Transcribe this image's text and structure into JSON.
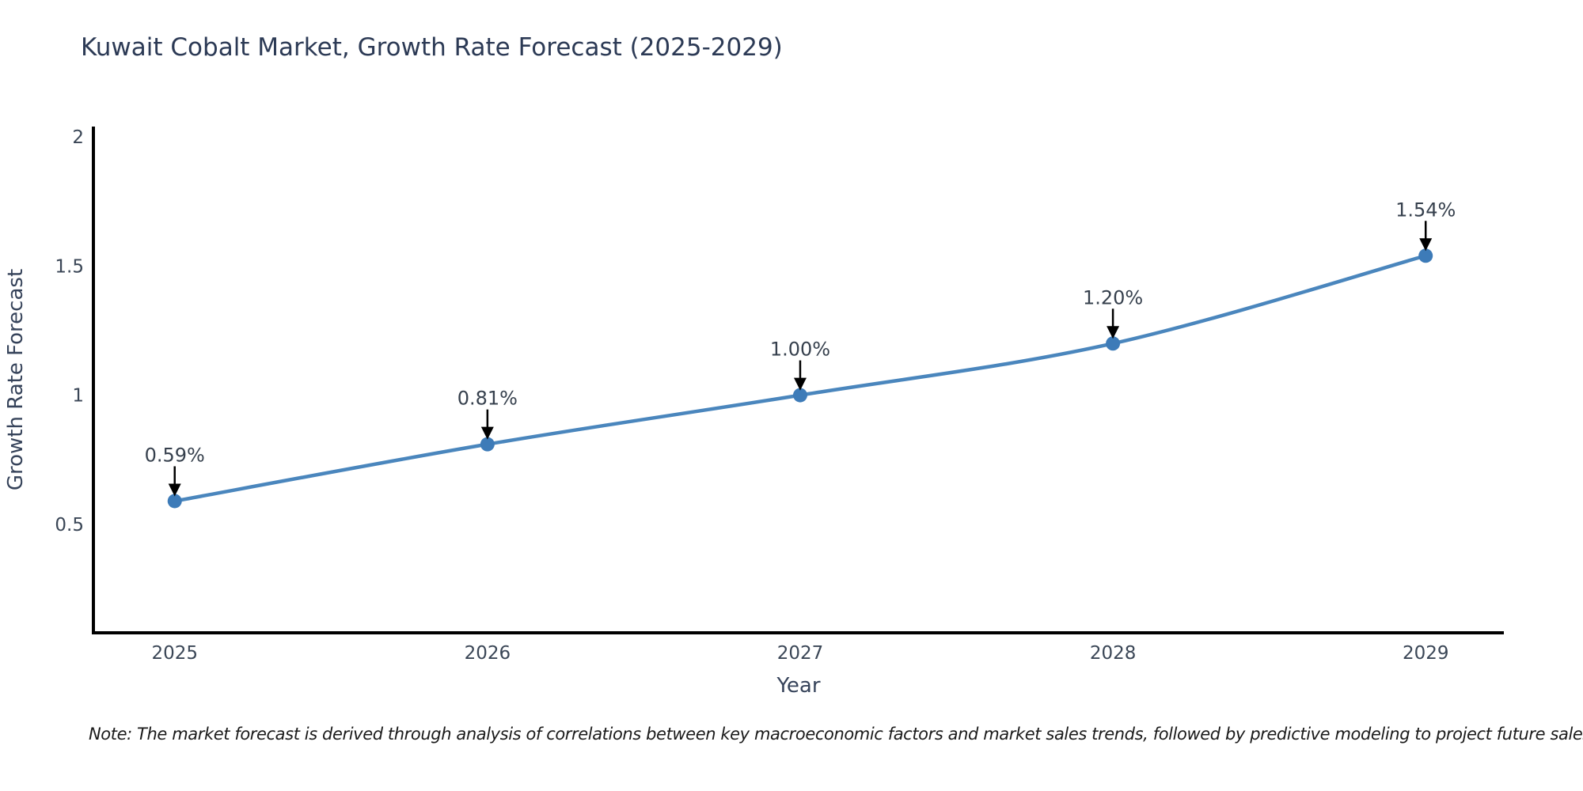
{
  "title": "Kuwait Cobalt Market, Growth Rate Forecast (2025-2029)",
  "note": "Note: The market forecast is derived through analysis of correlations between key macroeconomic factors and market sales trends, followed by predictive modeling to project future sales",
  "chart_data": {
    "type": "line",
    "title": "Kuwait Cobalt Market, Growth Rate Forecast (2025-2029)",
    "xlabel": "Year",
    "ylabel": "Growth Rate Forecast",
    "x": [
      2025,
      2026,
      2027,
      2028,
      2029
    ],
    "values": [
      0.59,
      0.81,
      1.0,
      1.2,
      1.54
    ],
    "point_labels": [
      "0.59%",
      "0.81%",
      "1.00%",
      "1.20%",
      "1.54%"
    ],
    "xticks": [
      2025,
      2026,
      2027,
      2028,
      2029
    ],
    "xtick_labels": [
      "2025",
      "2026",
      "2027",
      "2028",
      "2029"
    ],
    "yticks": [
      0.5,
      1,
      1.5,
      2
    ],
    "ytick_labels": [
      "0.5",
      "1",
      "1.5",
      "2"
    ],
    "xlim": [
      2024.74,
      2029.25
    ],
    "ylim": [
      0.08,
      2.04
    ],
    "grid": false,
    "legend": null,
    "line_color": "#4a86bd",
    "marker_color": "#3d7bb8",
    "axis_color": "#000000",
    "arrow_color": "#000000"
  }
}
